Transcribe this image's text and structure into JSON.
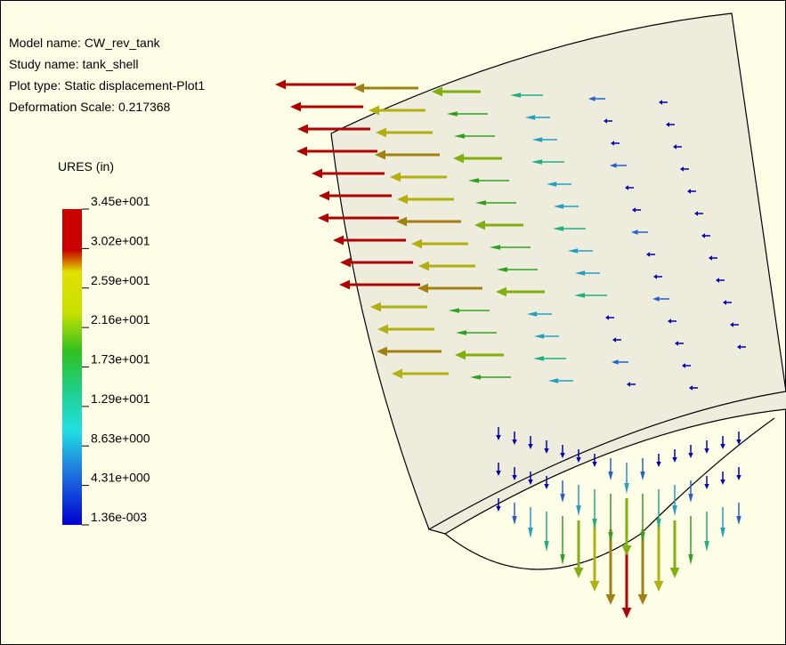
{
  "info": {
    "lines": [
      "Model name: CW_rev_tank",
      "Study name: tank_shell",
      "Plot type: Static displacement-Plot1",
      "Deformation Scale: 0.217368"
    ]
  },
  "legend": {
    "title": "URES (in)",
    "labels": [
      "3.45e+001",
      "3.02e+001",
      "2.59e+001",
      "2.16e+001",
      "1.73e+001",
      "1.29e+001",
      "8.63e+000",
      "4.31e+000",
      "1.36e-003"
    ]
  }
}
